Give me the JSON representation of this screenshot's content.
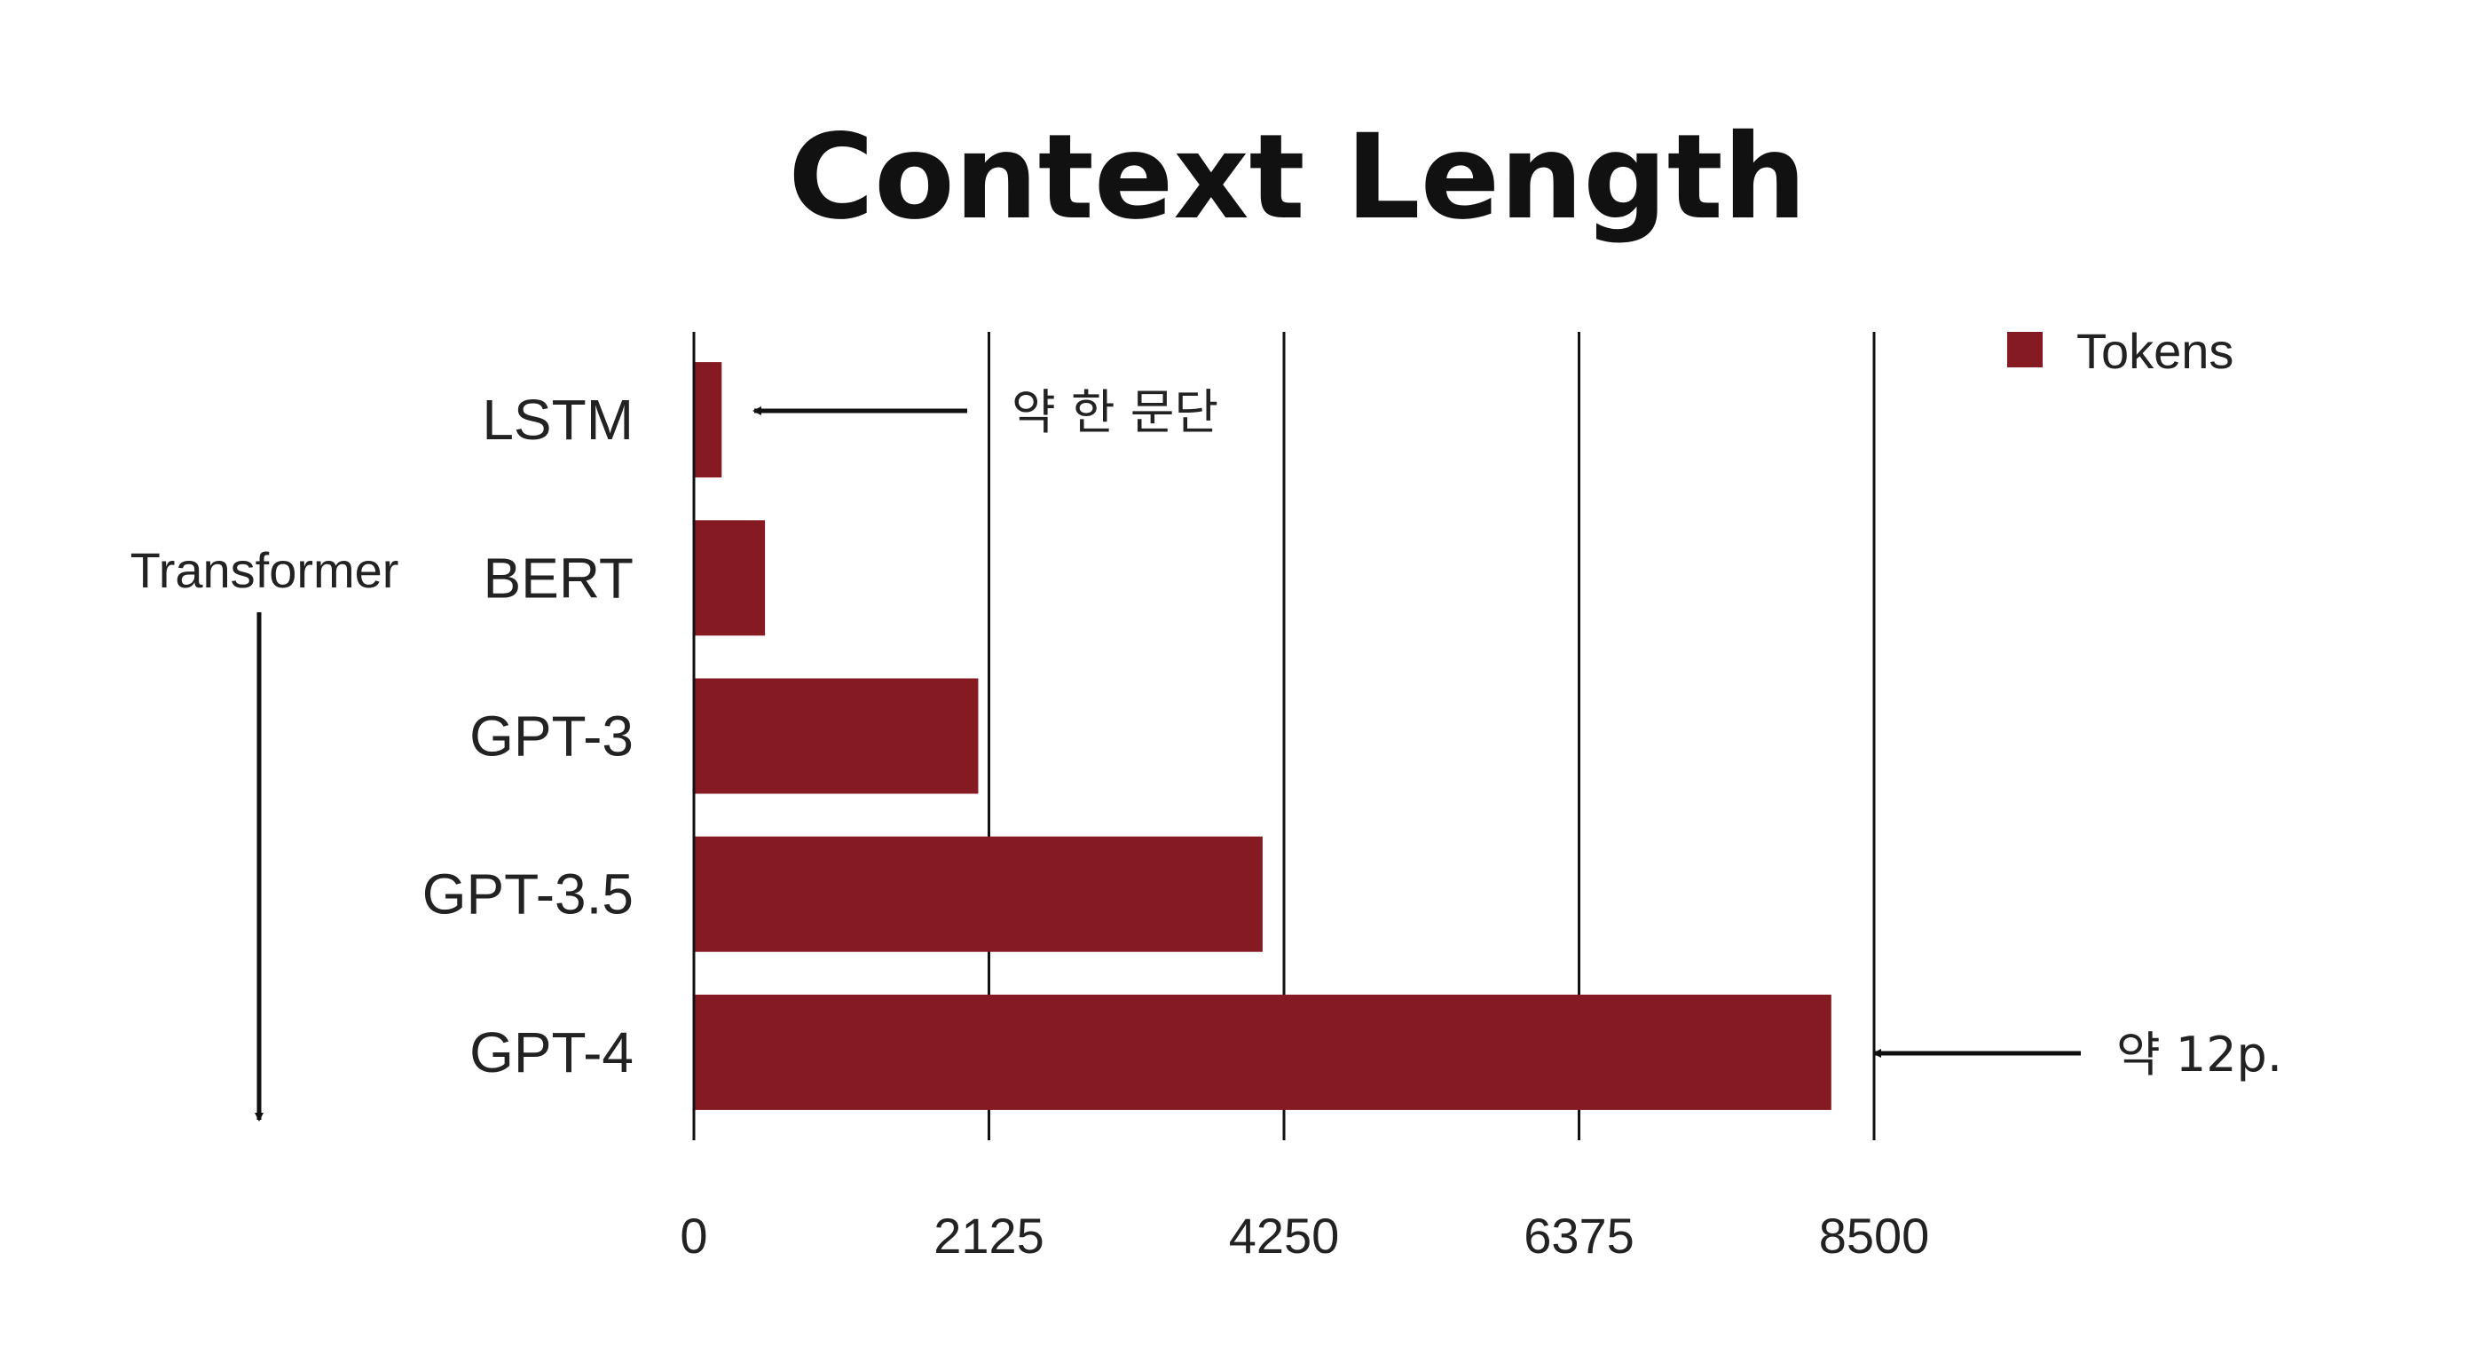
{
  "chart_data": {
    "type": "bar",
    "orientation": "horizontal",
    "title": "Context Length",
    "categories": [
      "LSTM",
      "BERT",
      "GPT-3",
      "GPT-3.5",
      "GPT-4"
    ],
    "series": [
      {
        "name": "Tokens",
        "color": "#861a23",
        "values": [
          200,
          512,
          2048,
          4096,
          8192
        ]
      }
    ],
    "xlim": [
      0,
      8500
    ],
    "xticks": [
      "0",
      "2125",
      "4250",
      "6375",
      "8500"
    ],
    "xtick_values": [
      0,
      2125,
      4250,
      6375,
      8500
    ],
    "grid": "vertical",
    "legend_position": "top-right",
    "side_label": "Transformer",
    "annotations": [
      {
        "text": "약 한 문단",
        "category": "LSTM"
      },
      {
        "text": "약 12p.",
        "category": "GPT-4"
      }
    ]
  }
}
